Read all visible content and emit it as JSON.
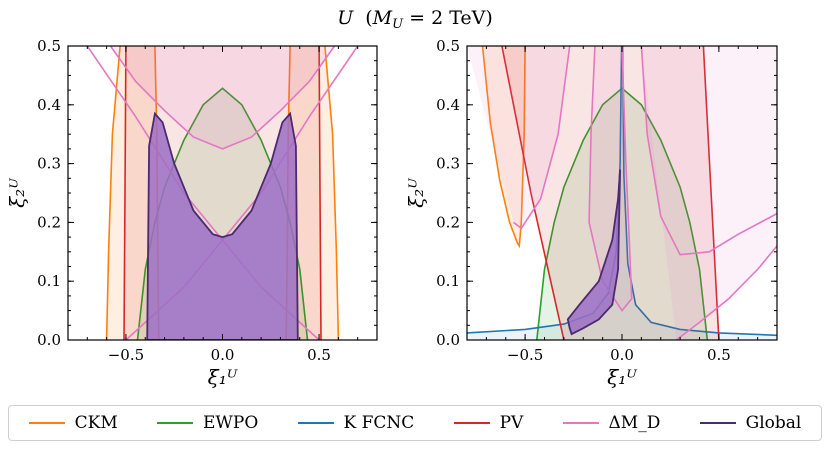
{
  "suptitle": "U (M_U = 2 TeV)",
  "suptitle_parts": {
    "italic_u": "U",
    "open": "(",
    "mass": "M",
    "sub": "U",
    "rest": " = 2 TeV)"
  },
  "chart_data": [
    {
      "type": "area",
      "panel": "left",
      "xlabel": "ξ₁ᵁ",
      "ylabel": "ξ₂ᵁ",
      "xlim": [
        -0.8,
        0.8
      ],
      "ylim": [
        0,
        0.5
      ],
      "xticks": [
        -0.5,
        0.0,
        0.5
      ],
      "xtick_labels": [
        "−0.5",
        "0.0",
        "0.5"
      ],
      "yticks": [
        0.0,
        0.1,
        0.2,
        0.3,
        0.4,
        0.5
      ],
      "ytick_labels": [
        "0.0",
        "0.1",
        "0.2",
        "0.3",
        "0.4",
        "0.5"
      ],
      "series": [
        {
          "name": "CKM",
          "kind": "band_pair",
          "color": "#ff7f0e",
          "outer": [
            [
              -0.53,
              0.5
            ],
            [
              -0.57,
              0.35
            ],
            [
              -0.59,
              0.15
            ],
            [
              -0.6,
              0.0
            ]
          ],
          "inner": [
            [
              -0.35,
              0.5
            ],
            [
              -0.34,
              0.35
            ],
            [
              -0.335,
              0.15
            ],
            [
              -0.33,
              0.0
            ]
          ]
        },
        {
          "name": "EWPO",
          "kind": "ellipse",
          "color": "#2ca02c",
          "x": [
            -0.44,
            -0.4,
            -0.35,
            -0.3,
            -0.2,
            -0.1,
            0.0,
            0.1,
            0.2,
            0.3,
            0.35,
            0.4,
            0.44
          ],
          "y": [
            0.0,
            0.12,
            0.2,
            0.26,
            0.34,
            0.4,
            0.428,
            0.4,
            0.34,
            0.26,
            0.2,
            0.12,
            0.0
          ]
        },
        {
          "name": "PV",
          "kind": "vertical_band",
          "color": "#d62728",
          "left": [
            [
              -0.5,
              0.5
            ],
            [
              -0.505,
              0.25
            ],
            [
              -0.51,
              0.0
            ]
          ],
          "right": [
            [
              0.5,
              0.5
            ],
            [
              0.505,
              0.25
            ],
            [
              0.51,
              0.0
            ]
          ]
        },
        {
          "name": "ΔM_D",
          "kind": "curves",
          "color": "#e377c2",
          "upper_x": [
            -0.58,
            -0.45,
            -0.3,
            -0.15,
            0.0,
            0.15,
            0.3,
            0.45,
            0.58
          ],
          "upper_y": [
            0.5,
            0.44,
            0.39,
            0.345,
            0.325,
            0.345,
            0.39,
            0.44,
            0.5
          ],
          "cross_a": [
            [
              -0.7,
              0.5
            ],
            [
              -0.45,
              0.38
            ],
            [
              -0.2,
              0.25
            ],
            [
              0.0,
              0.17
            ],
            [
              0.2,
              0.09
            ],
            [
              0.4,
              0.03
            ],
            [
              0.5,
              0.0
            ]
          ],
          "cross_b": [
            [
              0.7,
              0.5
            ],
            [
              0.45,
              0.38
            ],
            [
              0.2,
              0.25
            ],
            [
              0.0,
              0.17
            ],
            [
              -0.2,
              0.09
            ],
            [
              -0.4,
              0.03
            ],
            [
              -0.5,
              0.0
            ]
          ]
        },
        {
          "name": "Global",
          "kind": "region",
          "color": "#4b2a6e",
          "fill": "#9c6fc7",
          "x": [
            -0.39,
            -0.38,
            -0.35,
            -0.31,
            -0.25,
            -0.15,
            -0.05,
            0.0,
            0.05,
            0.15,
            0.25,
            0.31,
            0.35,
            0.38,
            0.39,
            0.39,
            -0.39
          ],
          "y": [
            0.0,
            0.33,
            0.385,
            0.37,
            0.3,
            0.22,
            0.18,
            0.175,
            0.18,
            0.22,
            0.3,
            0.37,
            0.385,
            0.33,
            0.0,
            0.0,
            0.0
          ]
        }
      ]
    },
    {
      "type": "area",
      "panel": "right",
      "xlabel": "ξ₁ᵁ",
      "ylabel": "ξ₂ᵁ",
      "xlim": [
        -0.8,
        0.8
      ],
      "ylim": [
        0,
        0.5
      ],
      "xticks": [
        -0.5,
        0.0,
        0.5
      ],
      "xtick_labels": [
        "−0.5",
        "0.0",
        "0.5"
      ],
      "yticks": [
        0.0,
        0.1,
        0.2,
        0.3,
        0.4,
        0.5
      ],
      "ytick_labels": [
        "0.0",
        "0.1",
        "0.2",
        "0.3",
        "0.4",
        "0.5"
      ],
      "series": [
        {
          "name": "CKM",
          "kind": "u_curve",
          "color": "#ff7f0e",
          "x": [
            -0.72,
            -0.68,
            -0.63,
            -0.58,
            -0.54,
            -0.53,
            -0.52,
            -0.505,
            -0.5
          ],
          "y": [
            0.5,
            0.37,
            0.27,
            0.2,
            0.165,
            0.16,
            0.2,
            0.35,
            0.5
          ]
        },
        {
          "name": "EWPO",
          "kind": "ellipse",
          "color": "#2ca02c",
          "x": [
            -0.44,
            -0.4,
            -0.35,
            -0.3,
            -0.2,
            -0.1,
            0.0,
            0.1,
            0.2,
            0.3,
            0.35,
            0.4,
            0.44
          ],
          "y": [
            0.0,
            0.12,
            0.2,
            0.26,
            0.34,
            0.4,
            0.428,
            0.4,
            0.34,
            0.26,
            0.2,
            0.12,
            0.0
          ]
        },
        {
          "name": "K FCNC",
          "kind": "hyperbola",
          "color": "#1f77b4",
          "left": [
            [
              -0.8,
              0.012
            ],
            [
              -0.5,
              0.018
            ],
            [
              -0.3,
              0.027
            ],
            [
              -0.15,
              0.045
            ],
            [
              -0.07,
              0.08
            ],
            [
              -0.03,
              0.15
            ],
            [
              -0.01,
              0.3
            ],
            [
              -0.002,
              0.5
            ]
          ],
          "right": [
            [
              0.8,
              0.008
            ],
            [
              0.5,
              0.012
            ],
            [
              0.3,
              0.018
            ],
            [
              0.15,
              0.03
            ],
            [
              0.07,
              0.06
            ],
            [
              0.03,
              0.13
            ],
            [
              0.01,
              0.28
            ],
            [
              0.003,
              0.5
            ]
          ]
        },
        {
          "name": "PV",
          "kind": "slanted_band",
          "color": "#d62728",
          "left": [
            [
              -0.62,
              0.5
            ],
            [
              -0.47,
              0.25
            ],
            [
              -0.3,
              0.0
            ]
          ],
          "right": [
            [
              0.42,
              0.5
            ],
            [
              0.46,
              0.25
            ],
            [
              0.5,
              0.0
            ]
          ]
        },
        {
          "name": "ΔM_D",
          "kind": "curves",
          "color": "#e377c2",
          "c1": [
            [
              -0.14,
              0.5
            ],
            [
              -0.16,
              0.35
            ],
            [
              -0.17,
              0.2
            ],
            [
              -0.1,
              0.1
            ],
            [
              0.0,
              0.05
            ],
            [
              0.05,
              0.07
            ],
            [
              0.04,
              0.15
            ],
            [
              0.02,
              0.3
            ],
            [
              0.0,
              0.5
            ]
          ],
          "c2": [
            [
              -0.27,
              0.5
            ],
            [
              -0.33,
              0.35
            ],
            [
              -0.42,
              0.24
            ],
            [
              -0.52,
              0.19
            ],
            [
              -0.56,
              0.2
            ]
          ],
          "c3": [
            [
              0.1,
              0.5
            ],
            [
              0.13,
              0.35
            ],
            [
              0.2,
              0.21
            ],
            [
              0.3,
              0.145
            ],
            [
              0.45,
              0.15
            ],
            [
              0.6,
              0.18
            ],
            [
              0.8,
              0.215
            ]
          ],
          "c4": [
            [
              0.28,
              0.0
            ],
            [
              0.4,
              0.03
            ],
            [
              0.55,
              0.07
            ],
            [
              0.7,
              0.12
            ],
            [
              0.8,
              0.16
            ]
          ]
        },
        {
          "name": "Global",
          "kind": "region",
          "color": "#4b2a6e",
          "fill": "#9c6fc7",
          "x": [
            -0.27,
            -0.28,
            -0.22,
            -0.12,
            -0.05,
            -0.02,
            -0.01,
            -0.02,
            -0.05,
            -0.12,
            -0.2,
            -0.26,
            -0.27
          ],
          "y": [
            0.02,
            0.035,
            0.06,
            0.1,
            0.17,
            0.24,
            0.29,
            0.12,
            0.06,
            0.035,
            0.02,
            0.01,
            0.02
          ]
        }
      ]
    }
  ],
  "legend": {
    "placement": "bottom",
    "entries": [
      {
        "label": "CKM",
        "color": "#ff7f0e"
      },
      {
        "label": "EWPO",
        "color": "#2ca02c"
      },
      {
        "label": "K FCNC",
        "color": "#1f77b4"
      },
      {
        "label": "PV",
        "color": "#d62728"
      },
      {
        "label": "ΔM_D",
        "color": "#e377c2"
      },
      {
        "label": "Global",
        "color": "#4b2a6e"
      }
    ]
  }
}
